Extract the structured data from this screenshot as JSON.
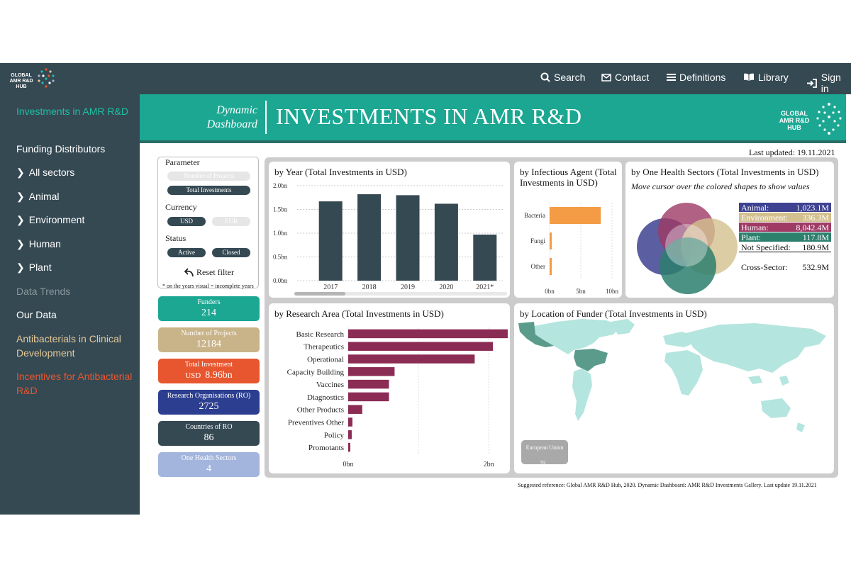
{
  "header": {
    "logo_text": [
      "GLOBAL",
      "AMR R&D",
      "HUB"
    ],
    "nav": [
      {
        "label": "Search",
        "icon": "search-icon"
      },
      {
        "label": "Contact",
        "icon": "envelope-icon"
      },
      {
        "label": "Definitions",
        "icon": "list-icon"
      },
      {
        "label": "Library",
        "icon": "book-icon"
      },
      {
        "label": "Sign in",
        "icon": "sign-in-icon"
      }
    ]
  },
  "sidebar": {
    "items": [
      {
        "label": "Investments in AMR R&D",
        "style": "teal"
      },
      {
        "label": "Funding Distributors",
        "style": "white"
      },
      {
        "label": "All sectors",
        "style": "white",
        "chevron": true
      },
      {
        "label": "Animal",
        "style": "white",
        "chevron": true
      },
      {
        "label": "Environment",
        "style": "white",
        "chevron": true
      },
      {
        "label": "Human",
        "style": "white",
        "chevron": true
      },
      {
        "label": "Plant",
        "style": "white",
        "chevron": true
      },
      {
        "label": "Data Trends",
        "style": "grey"
      },
      {
        "label": "Our Data",
        "style": "white"
      },
      {
        "label": "Antibacterials in Clinical Development",
        "style": "gold"
      },
      {
        "label": "Incentives for Antibacterial R&D",
        "style": "red"
      }
    ]
  },
  "banner": {
    "subtitle_line1": "Dynamic",
    "subtitle_line2": "Dashboard",
    "title": "INVESTMENTS IN AMR R&D",
    "logo_text": [
      "GLOBAL",
      "AMR R&D",
      "HUB"
    ]
  },
  "last_updated": "Last updated:  19.11.2021",
  "filters": {
    "parameter_label": "Parameter",
    "parameter_options": [
      "Number of Projects",
      "Total Investments"
    ],
    "currency_label": "Currency",
    "currency_options": [
      "USD",
      "EUR"
    ],
    "status_label": "Status",
    "status_options": [
      "Active",
      "Closed"
    ],
    "reset_label": "Reset filter",
    "note": "* on the years visual = incomplete years"
  },
  "kpis": [
    {
      "label": "Funders",
      "value": "214",
      "color": "#1ba792"
    },
    {
      "label": "Number of Projects",
      "value": "12184",
      "color": "#c9b389"
    },
    {
      "label": "Total Investment",
      "prefix": "USD",
      "value": "8.96bn",
      "color": "#e8562f"
    },
    {
      "label": "Research Organisations (RO)",
      "value": "2725",
      "color": "#2c3e8f"
    },
    {
      "label": "Countries of RO",
      "value": "86",
      "color": "#354953"
    },
    {
      "label": "One Health Sectors",
      "value": "4",
      "color": "#a3b5dd"
    }
  ],
  "panels": {
    "year_title": "by Year (Total Investments in USD)",
    "agent_title": "by Infectious Agent (Total Investments in USD)",
    "onehealth_title": "by One Health Sectors (Total Investments in USD)",
    "onehealth_hint": "Move cursor over the colored shapes to show values",
    "research_title": "by Research Area (Total Investments in USD)",
    "location_title": "by Location of Funder (Total Investments in USD)",
    "eu_label": "European Union",
    "eu_value": "79..."
  },
  "onehealth_legend": [
    {
      "label": "Animal:",
      "value": "1,023.1M",
      "color": "#3e4291"
    },
    {
      "label": "Environment:",
      "value": "336.3M",
      "color": "#d3c08f"
    },
    {
      "label": "Human:",
      "value": "8,042.4M",
      "color": "#9e3a64"
    },
    {
      "label": "Plant:",
      "value": "117.8M",
      "color": "#2d7f6e"
    },
    {
      "label": "Not Specified:",
      "value": "180.9M",
      "color": ""
    },
    {
      "label": "Cross-Sector:",
      "value": "532.9M",
      "color": ""
    }
  ],
  "reference": "Suggested reference: Global AMR R&D Hub, 2020. Dynamic Dashboard: AMR R&D Investments Gallery. Last update   19.11.2021",
  "chart_data": [
    {
      "type": "bar",
      "title": "by Year (Total Investments in USD)",
      "categories": [
        "2017",
        "2018",
        "2019",
        "2020",
        "2021*"
      ],
      "values": [
        1.67,
        1.82,
        1.8,
        1.62,
        0.97
      ],
      "ytick_labels": [
        "0.0bn",
        "0.5bn",
        "1.0bn",
        "1.5bn",
        "2.0bn"
      ],
      "ylim": [
        0,
        2.0
      ],
      "color": "#354953",
      "grid": true
    },
    {
      "type": "bar",
      "orientation": "horizontal",
      "title": "by Infectious Agent (Total Investments in USD)",
      "categories": [
        "Bacteria",
        "Fungi",
        "Other"
      ],
      "values": [
        8.2,
        0.15,
        0.1
      ],
      "xtick_labels": [
        "0bn",
        "5bn",
        "10bn"
      ],
      "xlim": [
        0,
        10
      ],
      "color": "#f39c45"
    },
    {
      "type": "bar",
      "orientation": "horizontal",
      "title": "by Research Area (Total Investments in USD)",
      "categories": [
        "Basic Research",
        "Therapeutics",
        "Operational",
        "Capacity Building",
        "Vaccines",
        "Diagnostics",
        "Other Products",
        "Preventives Other",
        "Policy",
        "Promotants"
      ],
      "values": [
        2.27,
        2.06,
        1.8,
        0.66,
        0.58,
        0.58,
        0.2,
        0.06,
        0.05,
        0.03
      ],
      "xtick_labels": [
        "0bn",
        "2bn"
      ],
      "xlim": [
        0,
        2.2
      ],
      "color": "#8b2c55"
    }
  ]
}
